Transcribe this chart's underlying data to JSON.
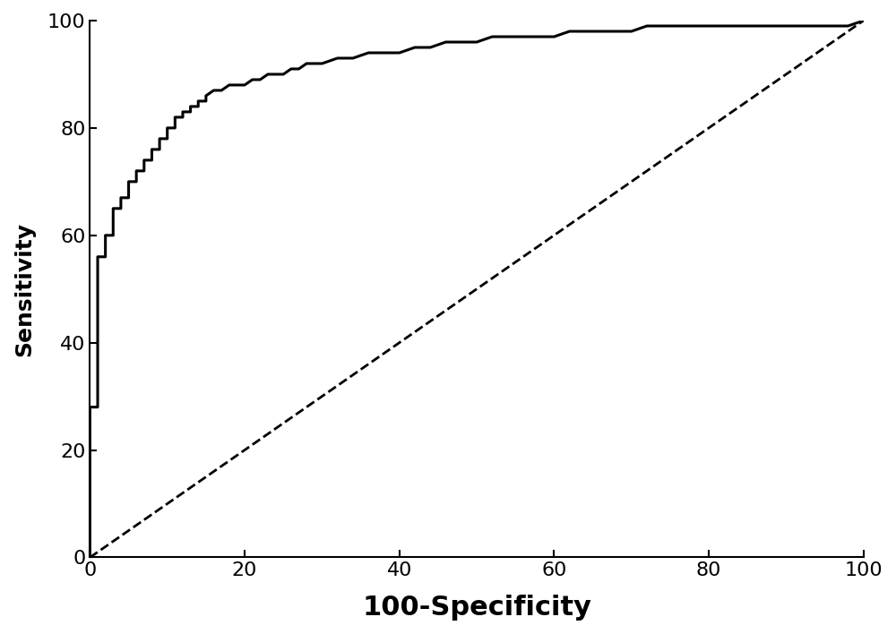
{
  "title": "",
  "xlabel": "100-Specificity",
  "ylabel": "Sensitivity",
  "xlim": [
    0,
    100
  ],
  "ylim": [
    0,
    100
  ],
  "xticks": [
    0,
    20,
    40,
    60,
    80,
    100
  ],
  "yticks": [
    0,
    20,
    40,
    60,
    80,
    100
  ],
  "diagonal_color": "#000000",
  "roc_color": "#000000",
  "roc_linewidth": 2.2,
  "diagonal_linewidth": 2.0,
  "xlabel_fontsize": 22,
  "ylabel_fontsize": 18,
  "tick_fontsize": 16,
  "background_color": "#ffffff",
  "roc_x": [
    0,
    0,
    0,
    0,
    1,
    1,
    1,
    2,
    2,
    2,
    3,
    3,
    3,
    4,
    4,
    5,
    5,
    5,
    6,
    6,
    7,
    7,
    8,
    8,
    9,
    9,
    10,
    10,
    11,
    11,
    12,
    12,
    13,
    13,
    14,
    14,
    15,
    15,
    16,
    17,
    18,
    19,
    20,
    21,
    22,
    23,
    24,
    25,
    26,
    27,
    28,
    29,
    30,
    32,
    34,
    36,
    38,
    40,
    42,
    44,
    46,
    48,
    50,
    52,
    54,
    56,
    58,
    60,
    62,
    64,
    66,
    68,
    70,
    72,
    74,
    76,
    78,
    80,
    82,
    84,
    86,
    88,
    90,
    92,
    94,
    96,
    98,
    100
  ],
  "roc_y": [
    0,
    5,
    10,
    28,
    28,
    42,
    56,
    56,
    58,
    60,
    60,
    62,
    65,
    65,
    67,
    67,
    68,
    70,
    70,
    72,
    72,
    74,
    74,
    76,
    76,
    78,
    78,
    80,
    80,
    82,
    82,
    83,
    83,
    84,
    84,
    85,
    85,
    86,
    87,
    87,
    88,
    88,
    88,
    89,
    89,
    90,
    90,
    90,
    91,
    91,
    92,
    92,
    92,
    93,
    93,
    94,
    94,
    94,
    95,
    95,
    96,
    96,
    96,
    97,
    97,
    97,
    97,
    97,
    98,
    98,
    98,
    98,
    98,
    99,
    99,
    99,
    99,
    99,
    99,
    99,
    99,
    99,
    99,
    99,
    99,
    99,
    99,
    100
  ]
}
